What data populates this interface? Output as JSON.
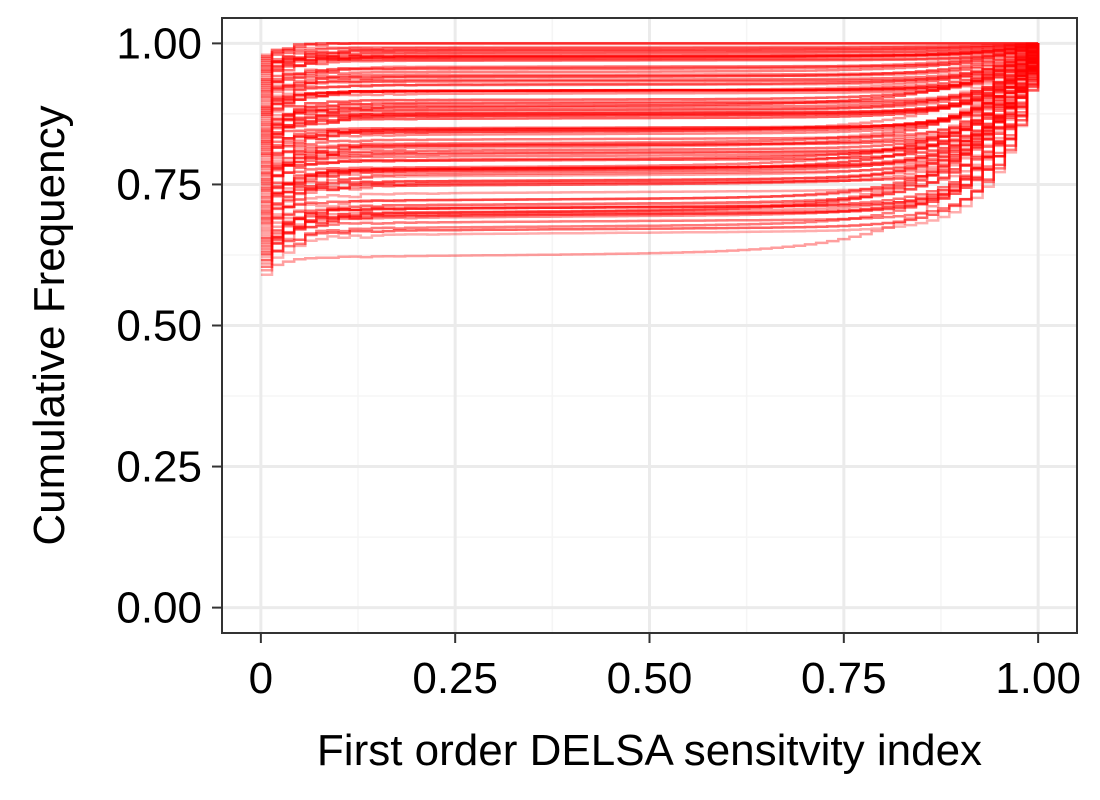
{
  "chart_data": {
    "type": "line",
    "title": "",
    "xlabel": "First order DELSA sensitvity index",
    "ylabel": "Cumulative Frequency",
    "xlim": [
      -0.05,
      1.05
    ],
    "ylim": [
      -0.045,
      1.045
    ],
    "x_ticks": [
      0,
      0.25,
      0.5,
      0.75,
      1.0
    ],
    "x_tick_labels": [
      "0",
      "0.25",
      "0.50",
      "0.75",
      "1.00"
    ],
    "y_ticks": [
      0,
      0.25,
      0.5,
      0.75,
      1.0
    ],
    "y_tick_labels": [
      "0.00",
      "0.25",
      "0.50",
      "0.75",
      "1.00"
    ],
    "grid": true,
    "legend": "none",
    "series_color": "#ff0000",
    "series_count": 100,
    "series_description": "Empirical cumulative distribution curves of the first order DELSA sensitivity index, one per parameter set; each curve starts near x=0 at a cumulative frequency between about 0.59 and 0.98, stays nearly flat across the middle, and rises to 1.00 at x=1.00",
    "series_start_range": [
      0.59,
      0.98
    ],
    "series_end": [
      1.0,
      1.0
    ]
  },
  "colors": {
    "background": "#ffffff",
    "panel_border": "#333333",
    "grid_major": "#ebebeb",
    "grid_minor": "#f5f5f5",
    "line": "#ff0000"
  }
}
